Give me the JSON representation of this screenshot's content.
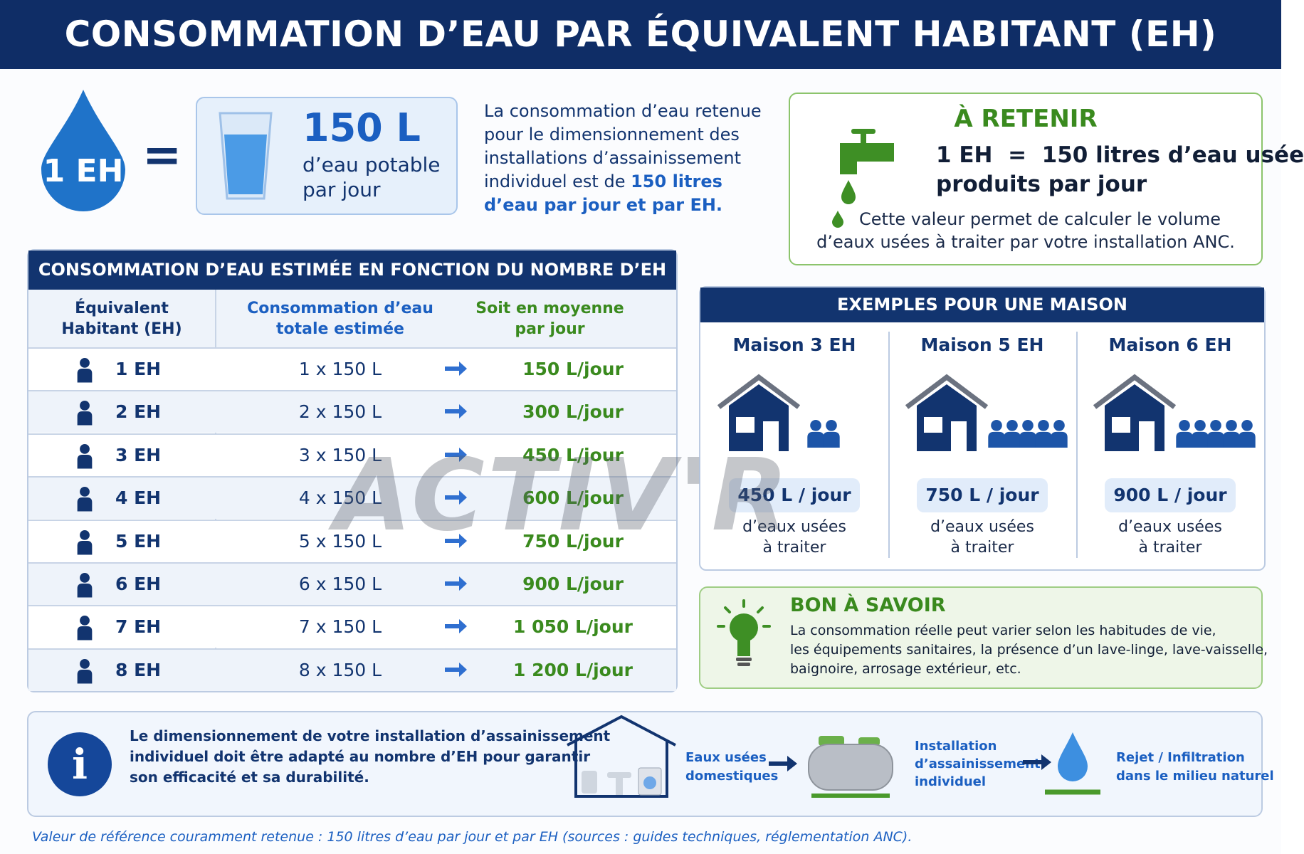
{
  "header": {
    "title": "CONSOMMATION D’EAU PAR ÉQUIVALENT HABITANT (EH)"
  },
  "hero": {
    "eh_label": "1 EH",
    "equals": "=",
    "amount": "150 L",
    "amount_lines": [
      "d’eau potable",
      "par jour"
    ]
  },
  "intro": {
    "text": "La consommation d’eau retenue pour le dimensionnement des installations d’assainissement individuel est de ",
    "highlight": "150 litres d’eau par jour et par EH."
  },
  "retenir": {
    "title": "À RETENIR",
    "formula_lines": [
      "1 EH  =  150 litres d’eau usée",
      "produits par jour"
    ],
    "note_lines": [
      "Cette valeur permet de calculer le volume",
      "d’eaux usées à traiter par votre installation ANC."
    ]
  },
  "table": {
    "title": "CONSOMMATION D’EAU ESTIMÉE EN FONCTION DU NOMBRE D’EH",
    "headers": [
      [
        "Équivalent",
        "Habitant (EH)"
      ],
      [
        "Consommation d’eau",
        "totale estimée"
      ],
      [
        "Soit en moyenne",
        "par jour"
      ]
    ],
    "rows": [
      [
        "1 EH",
        "1 x 150 L",
        "150 L/jour"
      ],
      [
        "2 EH",
        "2 x 150 L",
        "300 L/jour"
      ],
      [
        "3 EH",
        "3 x 150 L",
        "450 L/jour"
      ],
      [
        "4 EH",
        "4 x 150 L",
        "600 L/jour"
      ],
      [
        "5 EH",
        "5 x 150 L",
        "750 L/jour"
      ],
      [
        "6 EH",
        "6 x 150 L",
        "900 L/jour"
      ],
      [
        "7 EH",
        "7 x 150 L",
        "1 050 L/jour"
      ],
      [
        "8 EH",
        "8 x 150 L",
        "1 200 L/jour"
      ]
    ]
  },
  "examples": {
    "title": "EXEMPLES POUR UNE MAISON",
    "items": [
      {
        "title": "Maison 3 EH",
        "value": "450 L / jour",
        "desc_lines": [
          "d’eaux usées",
          "à traiter"
        ]
      },
      {
        "title": "Maison 5 EH",
        "value": "750 L / jour",
        "desc_lines": [
          "d’eaux usées",
          "à traiter"
        ]
      },
      {
        "title": "Maison 6 EH",
        "value": "900 L / jour",
        "desc_lines": [
          "d’eaux usées",
          "à traiter"
        ]
      }
    ]
  },
  "tip": {
    "title": "BON À SAVOIR",
    "lines": [
      "La consommation réelle peut varier selon les habitudes de vie,",
      "les équipements sanitaires, la présence d’un lave-linge, lave-vaisselle,",
      "baignoire, arrosage extérieur, etc."
    ]
  },
  "info": {
    "icon": "i",
    "lines": [
      "Le dimensionnement de votre installation d’assainissement",
      "individuel doit être adapté au nombre d’EH pour garantir",
      "son efficacité et sa durabilité."
    ],
    "steps": [
      [
        "Eaux usées",
        "domestiques"
      ],
      [
        "Installation",
        "d’assainissement",
        "individuel"
      ],
      [
        "Rejet / Infiltration",
        "dans le milieu naturel"
      ]
    ]
  },
  "watermark": "ACTIV'R",
  "footer": {
    "note": "Valeur de référence couramment retenue : 150 litres d’eau par jour et par EH (sources : guides techniques, réglementation ANC)."
  }
}
